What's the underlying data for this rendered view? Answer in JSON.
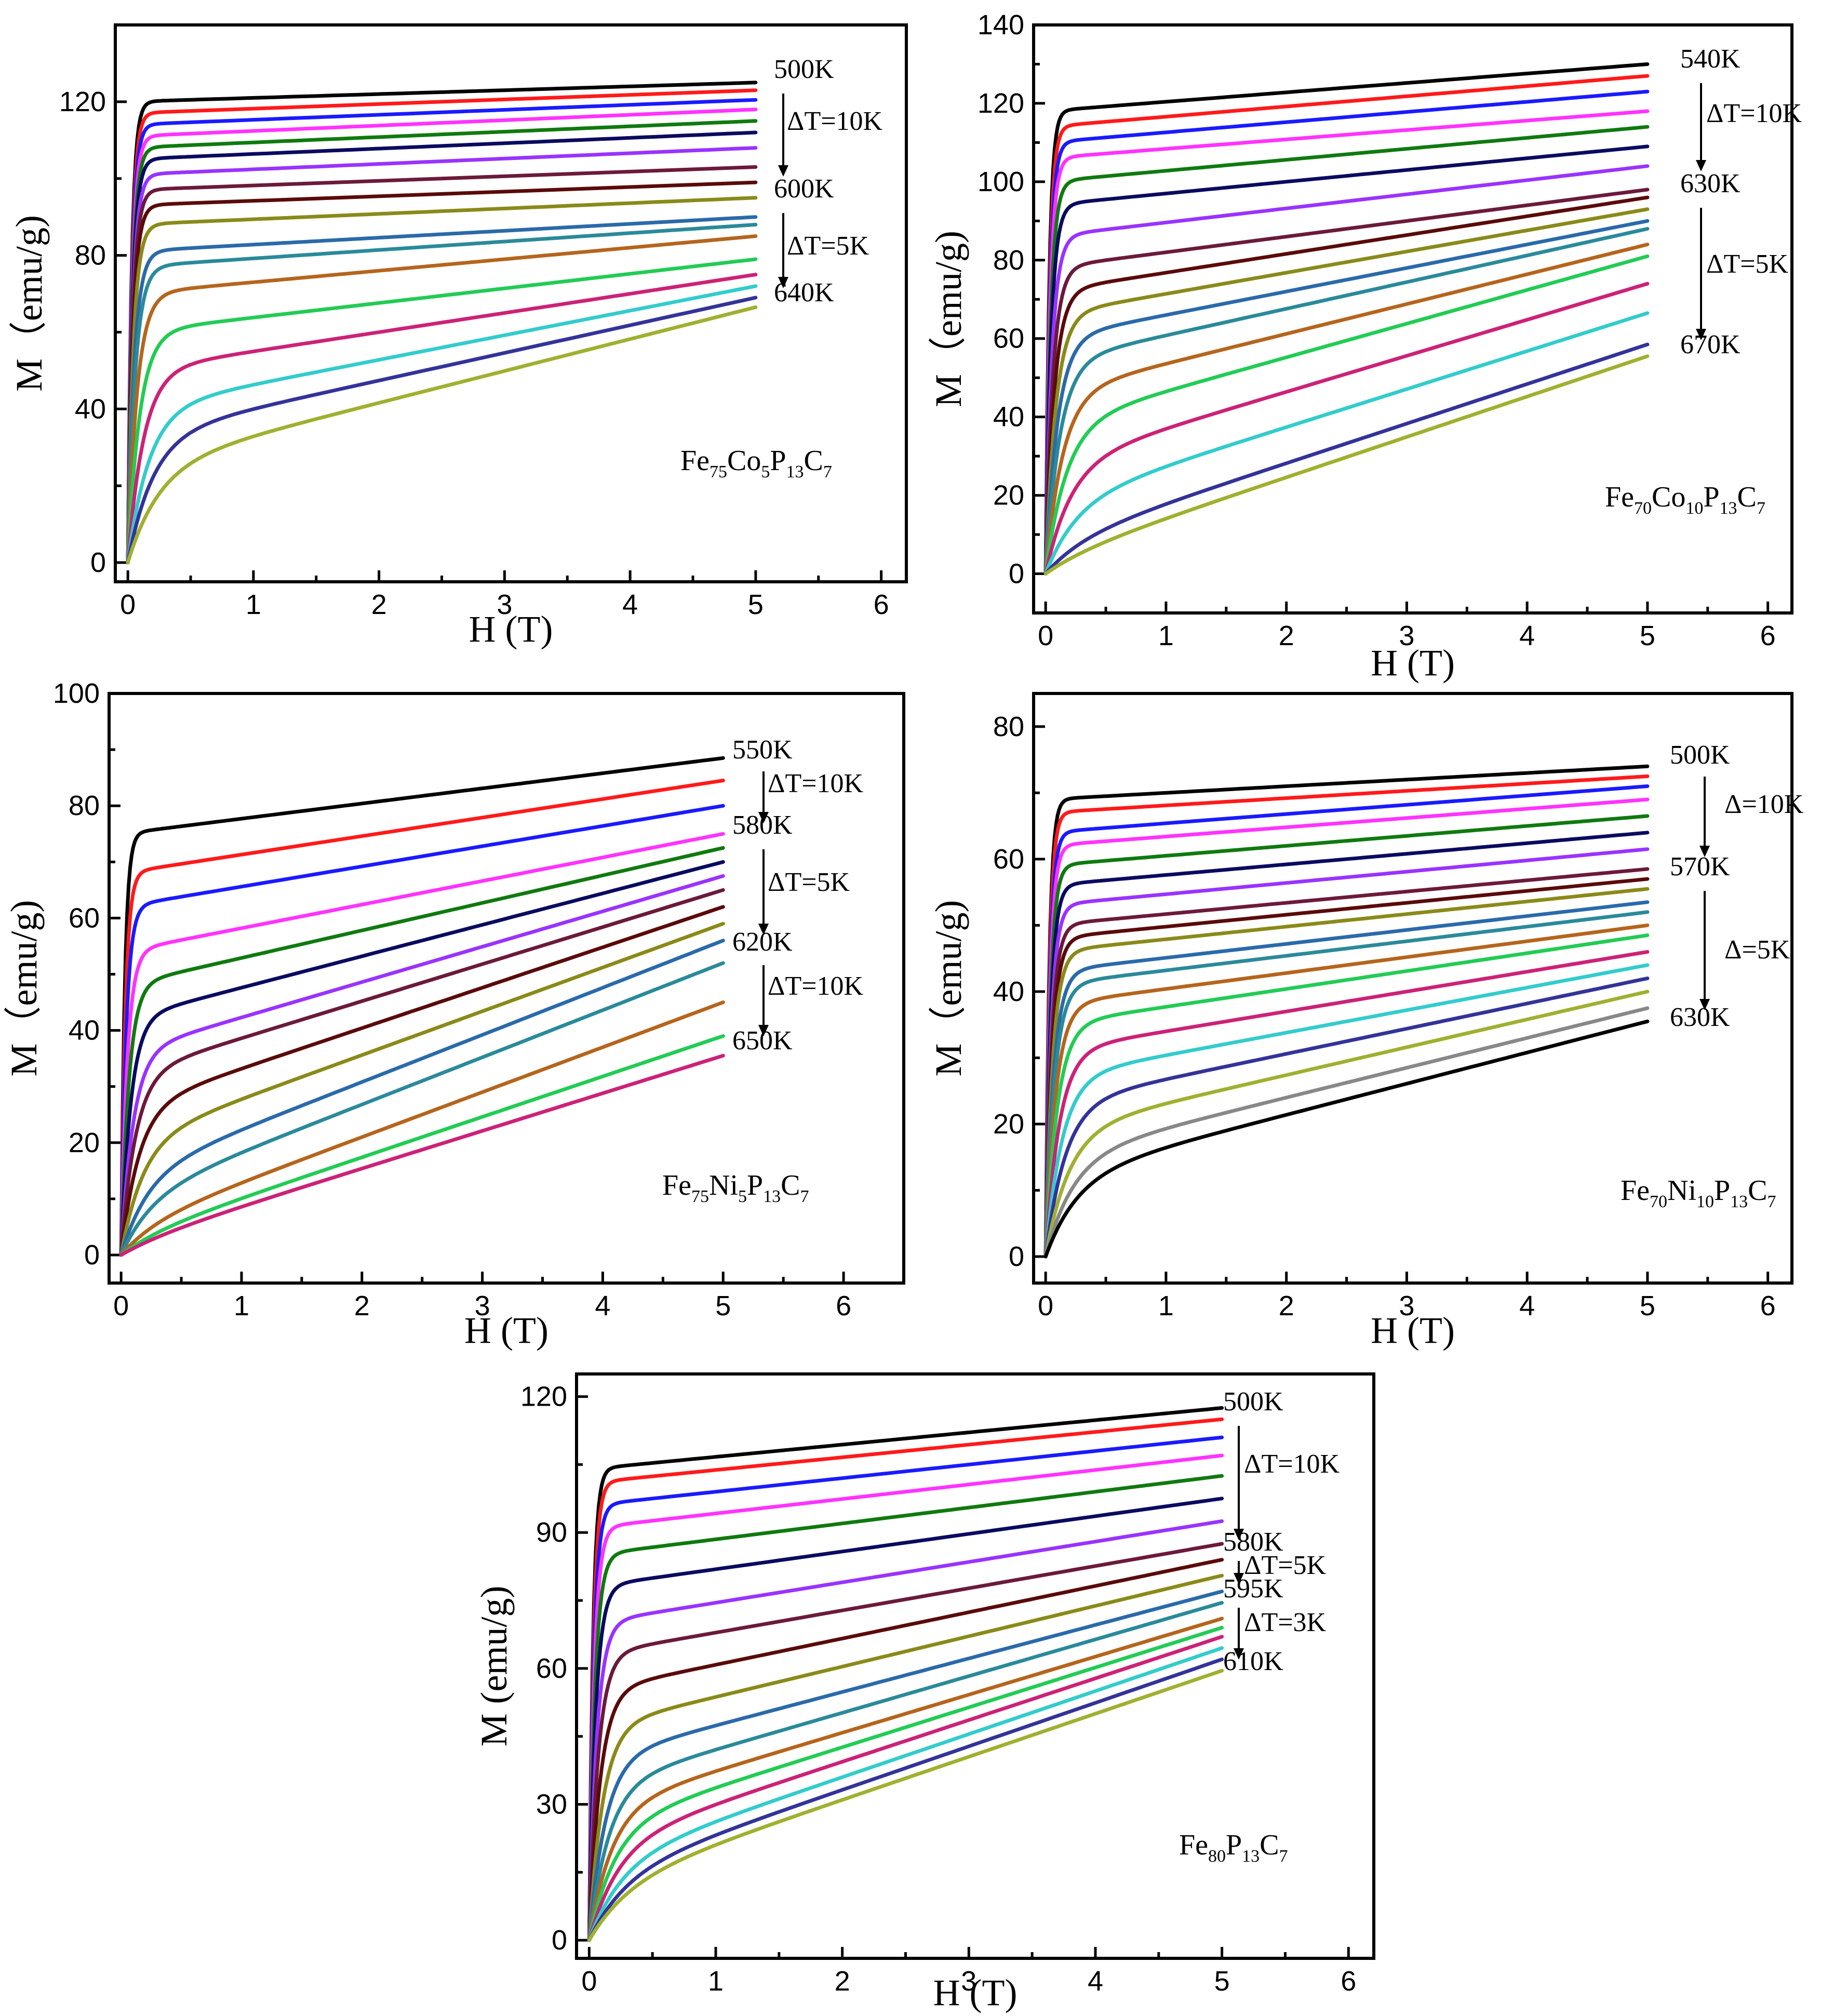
{
  "palette": [
    "#000000",
    "#ff1a1a",
    "#1a1aff",
    "#ff33ff",
    "#0f7a0f",
    "#0a0a60",
    "#9933ff",
    "#6b1a3a",
    "#5a0a0a",
    "#8a8a1a",
    "#2a6aaa",
    "#2a8a9a",
    "#b5651d",
    "#22cc55",
    "#cc2277",
    "#33cccc",
    "#333399",
    "#a0b030",
    "#888888"
  ],
  "chart_data": [
    {
      "id": "fe75co5",
      "type": "line",
      "xlabel": "H (T)",
      "ylabel": "M（emu/g)",
      "xlim": [
        -0.1,
        6.2
      ],
      "ylim": [
        -5,
        140
      ],
      "xticks": [
        0,
        1,
        2,
        3,
        4,
        5,
        6
      ],
      "yticks": [
        0,
        40,
        80,
        120
      ],
      "composition": {
        "base": "Fe",
        "parts": [
          [
            "Fe",
            "75"
          ],
          [
            "Co",
            "5"
          ],
          [
            "P",
            "13"
          ],
          [
            "C",
            "7"
          ]
        ]
      },
      "annotations": {
        "temps": [
          "500K",
          "600K",
          "640K"
        ],
        "steps": [
          "ΔT=10K",
          "ΔT=5K"
        ]
      },
      "series": {
        "M_at_5T": [
          125,
          123,
          120.5,
          118,
          115,
          112,
          108,
          103,
          99,
          95,
          90,
          88,
          85,
          79,
          75,
          72,
          69,
          66.5
        ],
        "M_sat_low": [
          120,
          117,
          114,
          111,
          108,
          105,
          101,
          97,
          93,
          88,
          81,
          77,
          70,
          60,
          50,
          40,
          33,
          25
        ]
      }
    },
    {
      "id": "fe70co10",
      "type": "line",
      "xlabel": "H (T)",
      "ylabel": "M（emu/g)",
      "xlim": [
        -0.1,
        6.2
      ],
      "ylim": [
        -10,
        140
      ],
      "xticks": [
        0,
        1,
        2,
        3,
        4,
        5,
        6
      ],
      "yticks": [
        0,
        20,
        40,
        60,
        80,
        100,
        120,
        140
      ],
      "composition": {
        "base": "Fe",
        "parts": [
          [
            "Fe",
            "70"
          ],
          [
            "Co",
            "10"
          ],
          [
            "P",
            "13"
          ],
          [
            "C",
            "7"
          ]
        ]
      },
      "annotations": {
        "temps": [
          "540K",
          "630K",
          "670K"
        ],
        "steps": [
          "ΔT=10K",
          "ΔT=5K"
        ]
      },
      "series": {
        "M_at_5T": [
          130,
          127,
          123,
          118,
          114,
          109,
          104,
          98,
          96,
          93,
          90,
          88,
          84,
          81,
          74,
          66.5,
          58.5,
          55.5
        ],
        "M_sat_low": [
          118,
          114,
          110,
          106,
          100,
          94,
          86,
          78,
          72,
          66,
          60,
          54,
          46,
          38,
          28,
          18,
          8,
          4
        ]
      }
    },
    {
      "id": "fe75ni5",
      "type": "line",
      "xlabel": "H (T)",
      "ylabel": "M（emu/g)",
      "xlim": [
        -0.1,
        6.5
      ],
      "ylim": [
        -5,
        100
      ],
      "xticks": [
        0,
        1,
        2,
        3,
        4,
        5,
        6
      ],
      "yticks": [
        0,
        20,
        40,
        60,
        80,
        100
      ],
      "composition": {
        "base": "Fe",
        "parts": [
          [
            "Fe",
            "75"
          ],
          [
            "Ni",
            "5"
          ],
          [
            "P",
            "13"
          ],
          [
            "C",
            "7"
          ]
        ]
      },
      "annotations": {
        "temps": [
          "550K",
          "580K",
          "620K",
          "650K"
        ],
        "steps": [
          "ΔT=10K",
          "ΔT=5K",
          "ΔT=10K"
        ]
      },
      "series": {
        "M_at_5T": [
          88.5,
          84.5,
          80,
          75,
          72.5,
          70,
          67.5,
          65,
          62,
          59,
          56,
          52,
          45,
          39,
          35.5
        ],
        "M_sat_low": [
          75,
          68,
          62,
          54,
          48,
          42,
          36,
          32,
          26,
          20,
          14,
          10,
          5,
          3,
          2
        ]
      }
    },
    {
      "id": "fe70ni10",
      "type": "line",
      "xlabel": "H (T)",
      "ylabel": "M（emu/g)",
      "xlim": [
        -0.1,
        6.2
      ],
      "ylim": [
        -4,
        85
      ],
      "xticks": [
        0,
        1,
        2,
        3,
        4,
        5,
        6
      ],
      "yticks": [
        0,
        20,
        40,
        60,
        80
      ],
      "composition": {
        "base": "Fe",
        "parts": [
          [
            "Fe",
            "70"
          ],
          [
            "Ni",
            "10"
          ],
          [
            "P",
            "13"
          ],
          [
            "C",
            "7"
          ]
        ]
      },
      "annotations": {
        "temps": [
          "500K",
          "570K",
          "630K"
        ],
        "steps": [
          "Δ=10K",
          "Δ=5K"
        ]
      },
      "series": {
        "M_at_5T": [
          74,
          72.5,
          71,
          69,
          66.5,
          64,
          61.5,
          58.5,
          57,
          55.5,
          53.5,
          52,
          50,
          48.5,
          46,
          44,
          42,
          40,
          37.5,
          35.5
        ],
        "M_sat_low": [
          69,
          67,
          64,
          62,
          59,
          56,
          53,
          50,
          48,
          46,
          43,
          41,
          38,
          35,
          31,
          27,
          23,
          19,
          15,
          12
        ]
      }
    },
    {
      "id": "fe80",
      "type": "line",
      "xlabel": "H (T)",
      "ylabel": "M (emu/g)",
      "xlim": [
        -0.1,
        6.2
      ],
      "ylim": [
        -4,
        125
      ],
      "xticks": [
        0,
        1,
        2,
        3,
        4,
        5,
        6
      ],
      "yticks": [
        0,
        30,
        60,
        90,
        120
      ],
      "composition": {
        "base": "Fe",
        "parts": [
          [
            "Fe",
            "80"
          ],
          [
            "P",
            "13"
          ],
          [
            "C",
            "7"
          ]
        ]
      },
      "annotations": {
        "temps": [
          "500K",
          "580K",
          "595K",
          "610K"
        ],
        "steps": [
          "ΔT=10K",
          "ΔT=5K",
          "ΔT=3K"
        ]
      },
      "series": {
        "M_at_5T": [
          117.5,
          115,
          111,
          107,
          102.5,
          97.5,
          92.5,
          87.5,
          84,
          80.5,
          77,
          74.5,
          71,
          69,
          67,
          64.5,
          62,
          59.5
        ],
        "M_sat_low": [
          104,
          101,
          96,
          91,
          85,
          78,
          70,
          63,
          55,
          47,
          40,
          34,
          29,
          25,
          21,
          17,
          14,
          12
        ]
      }
    }
  ]
}
